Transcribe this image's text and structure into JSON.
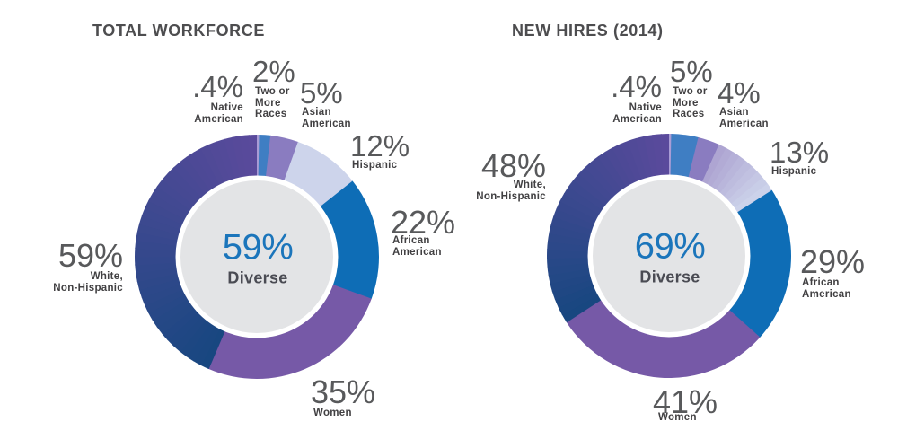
{
  "page": {
    "background": "#FFFFFF"
  },
  "styles": {
    "number_color": "#58595B",
    "sublabel_color": "#414042",
    "title_color": "#4D4D4F",
    "center_value_color": "#1B75BB",
    "center_label_color": "#4A4B53",
    "inner_circle_color": "#E3E4E6",
    "ring_color": "#FFFFFF"
  },
  "chart_data": [
    {
      "type": "pie",
      "style": "donut",
      "title": "TOTAL WORKFORCE",
      "center": {
        "value": "59%",
        "label": "Diverse"
      },
      "segments": [
        {
          "name": "Native American",
          "pct": ".4%",
          "value": 0.4,
          "label": "Native\nAmerican",
          "color": "#A99CD5"
        },
        {
          "name": "Two or More Races",
          "pct": "2%",
          "value": 2,
          "label": "Two or\nMore\nRaces",
          "color": "#3F7EC3"
        },
        {
          "name": "Asian American",
          "pct": "5%",
          "value": 5,
          "label": "Asian\nAmerican",
          "color": "#8A7CC0"
        },
        {
          "name": "Hispanic",
          "pct": "12%",
          "value": 12,
          "label": "Hispanic",
          "color": "#CDD4EB"
        },
        {
          "name": "African American",
          "pct": "22%",
          "value": 22,
          "label": "African\nAmerican",
          "color": "#0E6DB6"
        },
        {
          "name": "Women",
          "pct": "35%",
          "value": 35,
          "label": "Women",
          "color": "#7659A7"
        },
        {
          "name": "White, Non-Hispanic",
          "pct": "59%",
          "value": 59,
          "label": "White,\nNon-Hispanic",
          "gradient": [
            "#174780",
            "#5B4A9C"
          ]
        }
      ]
    },
    {
      "type": "pie",
      "style": "donut",
      "title": "NEW HIRES (2014)",
      "center": {
        "value": "69%",
        "label": "Diverse"
      },
      "segments": [
        {
          "name": "Native American",
          "pct": ".4%",
          "value": 0.4,
          "label": "Native\nAmerican",
          "color": "#A99CD5"
        },
        {
          "name": "Two or More Races",
          "pct": "5%",
          "value": 5,
          "label": "Two or\nMore\nRaces",
          "color": "#3F7EC3"
        },
        {
          "name": "Asian American",
          "pct": "4%",
          "value": 4,
          "label": "Asian\nAmerican",
          "color": "#8A7CC0"
        },
        {
          "name": "Hispanic",
          "pct": "13%",
          "value": 13,
          "label": "Hispanic",
          "gradient": [
            "#ACA2D0",
            "#CED5EC"
          ]
        },
        {
          "name": "African American",
          "pct": "29%",
          "value": 29,
          "label": "African\nAmerican",
          "color": "#0E6DB6"
        },
        {
          "name": "Women",
          "pct": "41%",
          "value": 41,
          "label": "Women",
          "color": "#7659A7"
        },
        {
          "name": "White, Non-Hispanic",
          "pct": "48%",
          "value": 48,
          "label": "White,\nNon-Hispanic",
          "gradient": [
            "#174780",
            "#5B4A9C"
          ]
        }
      ]
    }
  ]
}
